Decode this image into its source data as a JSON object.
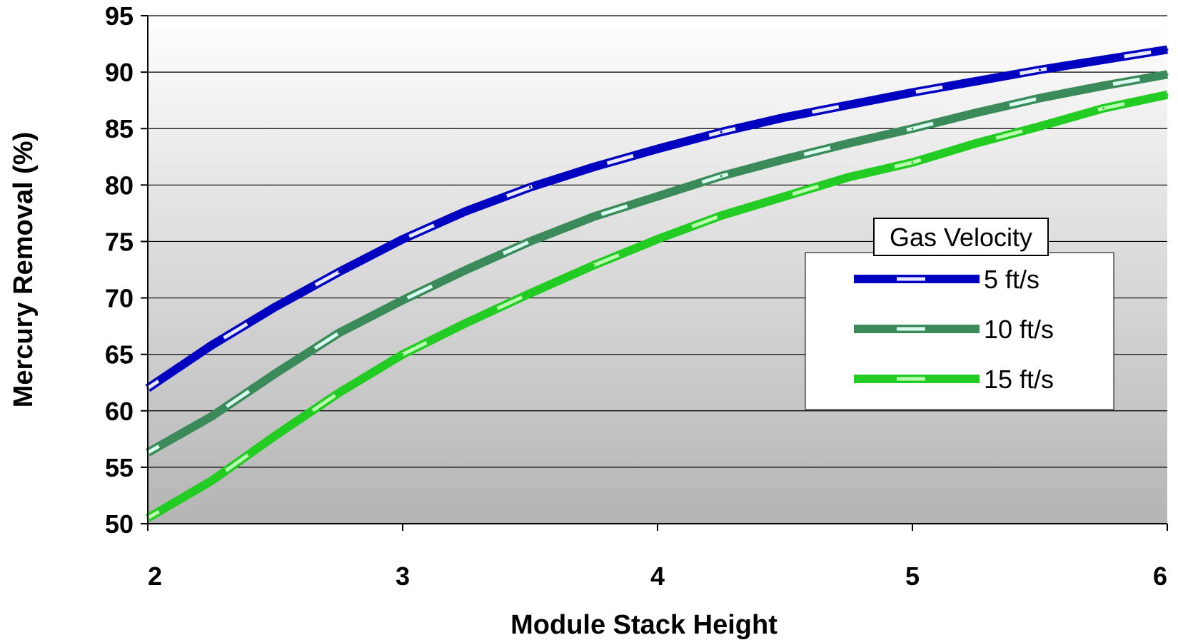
{
  "chart_data": {
    "type": "line",
    "xlabel": "Module Stack Height",
    "ylabel": "Mercury Removal (%)",
    "xlim": [
      2,
      6
    ],
    "ylim": [
      50,
      95
    ],
    "x_ticks": [
      "2",
      "3",
      "4",
      "5",
      "6"
    ],
    "y_ticks": [
      "50",
      "55",
      "60",
      "65",
      "70",
      "75",
      "80",
      "85",
      "90",
      "95"
    ],
    "grid": "horizontal",
    "legend": {
      "title": "Gas Velocity",
      "position": "right"
    },
    "x": [
      2,
      2.25,
      2.5,
      2.75,
      3,
      3.25,
      3.5,
      3.75,
      4,
      4.25,
      4.5,
      4.75,
      5,
      5.25,
      5.5,
      5.75,
      6
    ],
    "series": [
      {
        "name": "5 ft/s",
        "color": "#0000c0",
        "dash": "#e8e8ff",
        "values": [
          62,
          65.8,
          69.2,
          72.3,
          75.2,
          77.7,
          79.8,
          81.6,
          83.2,
          84.7,
          86,
          87.1,
          88.2,
          89.2,
          90.2,
          91.1,
          92
        ]
      },
      {
        "name": "10 ft/s",
        "color": "#3a8a5a",
        "dash": "#d8fff0",
        "values": [
          56.3,
          59.5,
          63.3,
          66.9,
          69.8,
          72.5,
          75,
          77.2,
          79,
          80.8,
          82.3,
          83.7,
          85,
          86.4,
          87.7,
          88.8,
          89.8
        ]
      },
      {
        "name": "15 ft/s",
        "color": "#22cc22",
        "dash": "#b8ffb0",
        "values": [
          50.5,
          53.8,
          57.8,
          61.6,
          65,
          67.8,
          70.4,
          72.9,
          75.2,
          77.3,
          79,
          80.7,
          82,
          83.7,
          85.2,
          86.8,
          88
        ]
      }
    ]
  }
}
